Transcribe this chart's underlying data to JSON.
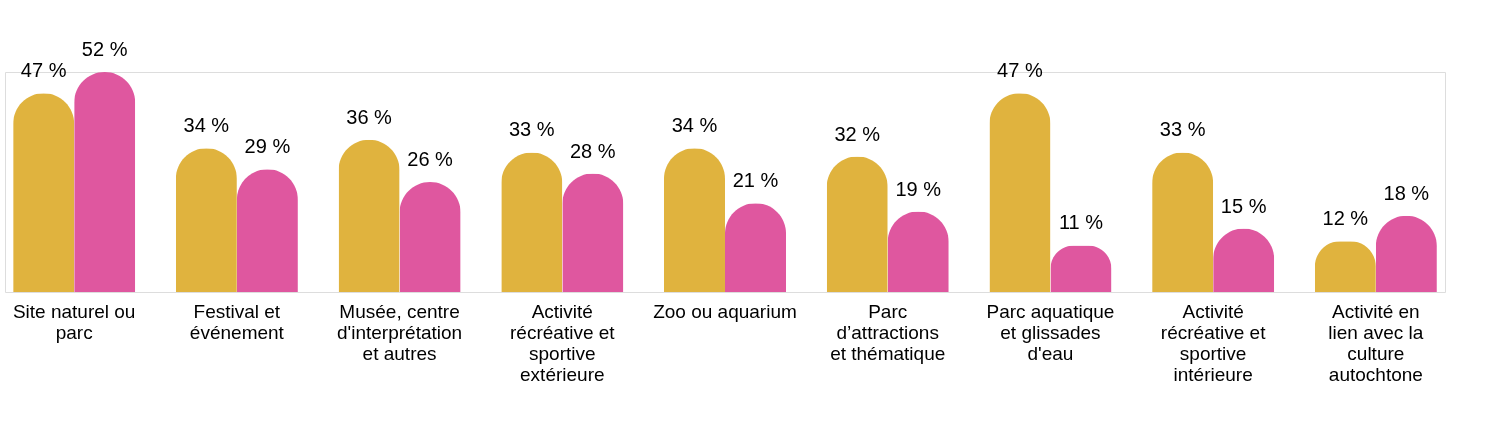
{
  "chart_data": {
    "type": "bar",
    "categories": [
      "Site naturel ou parc",
      "Festival et événement",
      "Musée, centre d'interprétation et autres",
      "Activité récréative et sportive extérieure",
      "Zoo ou aquarium",
      "Parc d’attractions et thématique",
      "Parc aquatique et glissades d'eau",
      "Activité récréative et sportive intérieure",
      "Activité en lien avec la culture autochtone"
    ],
    "series": [
      {
        "color": "#e0b33e",
        "values": [
          47,
          34,
          36,
          33,
          34,
          32,
          47,
          33,
          12
        ],
        "value_labels": [
          "47 %",
          "34 %",
          "36 %",
          "33 %",
          "34 %",
          "32 %",
          "47 %",
          "33 %",
          "12 %"
        ]
      },
      {
        "color": "#df579f",
        "values": [
          52,
          29,
          26,
          28,
          21,
          19,
          11,
          15,
          18
        ],
        "value_labels": [
          "52 %",
          "29 %",
          "26 %",
          "28 %",
          "21 %",
          "19 %",
          "11 %",
          "15 %",
          "18 %"
        ]
      }
    ],
    "legend": false
  }
}
